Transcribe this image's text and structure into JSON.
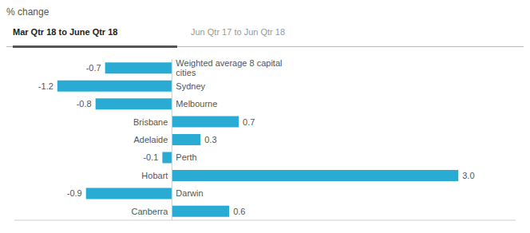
{
  "chart_data": {
    "type": "bar",
    "orientation": "horizontal",
    "title": "% change",
    "annotations": [
      "Mar Qtr 18 to June Qtr 18",
      "Jun Qtr 17 to Jun Qtr 18"
    ],
    "categories": [
      "Weighted average 8 capital\ncities",
      "Sydney",
      "Melbourne",
      "Brisbane",
      "Adelaide",
      "Perth",
      "Hobart",
      "Darwin",
      "Canberra"
    ],
    "values": [
      -0.7,
      -1.2,
      -0.8,
      0.7,
      0.3,
      -0.1,
      3.0,
      -0.9,
      0.6
    ],
    "value_labels": [
      "-0.7",
      "-1.2",
      "-0.8",
      "0.7",
      "0.3",
      "-0.1",
      "3.0",
      "-0.9",
      "0.6"
    ],
    "color": "#29ABD4",
    "xlim": [
      -1.65,
      3.6
    ],
    "data_labels": true,
    "tick_labels": false,
    "grid": false
  }
}
